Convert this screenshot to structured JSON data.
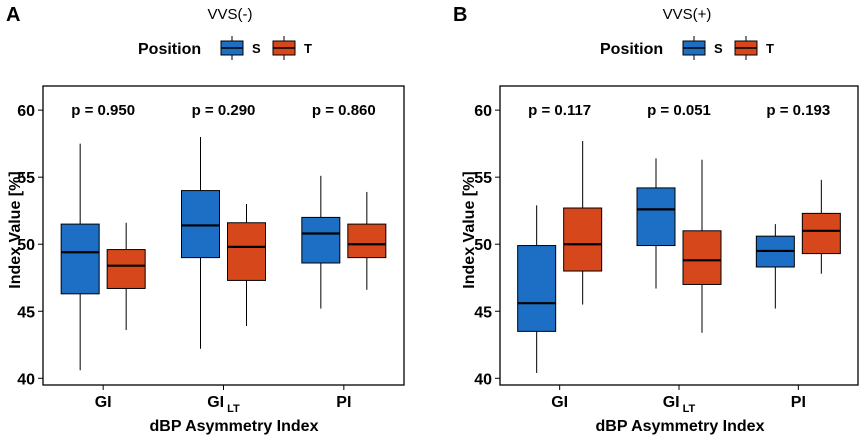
{
  "figure": {
    "legend_title": "Position",
    "legend_items": [
      {
        "label": "S",
        "color": "#1c6fc4"
      },
      {
        "label": "T",
        "color": "#d6481c"
      }
    ]
  },
  "chart_data": [
    {
      "type": "boxplot",
      "panel_letter": "A",
      "title": "VVS(-)",
      "xlabel": "dBP Asymmetry Index",
      "ylabel": "Index Value [%]",
      "ylim": [
        39.5,
        61.8
      ],
      "yticks": [
        40,
        45,
        50,
        55,
        60
      ],
      "categories": [
        {
          "main": "GI",
          "sub": ""
        },
        {
          "main": "GI",
          "sub": "LT"
        },
        {
          "main": "PI",
          "sub": ""
        }
      ],
      "p_values": [
        "p = 0.950",
        "p = 0.290",
        "p = 0.860"
      ],
      "series": [
        {
          "name": "S",
          "color": "#1c6fc4",
          "boxes": [
            {
              "min": 40.6,
              "q1": 46.3,
              "median": 49.4,
              "q3": 51.5,
              "max": 57.5
            },
            {
              "min": 42.2,
              "q1": 49.0,
              "median": 51.4,
              "q3": 54.0,
              "max": 58.0
            },
            {
              "min": 45.2,
              "q1": 48.6,
              "median": 50.8,
              "q3": 52.0,
              "max": 55.1
            }
          ]
        },
        {
          "name": "T",
          "color": "#d6481c",
          "boxes": [
            {
              "min": 43.6,
              "q1": 46.7,
              "median": 48.4,
              "q3": 49.6,
              "max": 51.6
            },
            {
              "min": 43.9,
              "q1": 47.3,
              "median": 49.8,
              "q3": 51.6,
              "max": 53.0
            },
            {
              "min": 46.6,
              "q1": 49.0,
              "median": 50.0,
              "q3": 51.5,
              "max": 53.9
            }
          ]
        }
      ]
    },
    {
      "type": "boxplot",
      "panel_letter": "B",
      "title": "VVS(+)",
      "xlabel": "dBP Asymmetry Index",
      "ylabel": "Index Value [%]",
      "ylim": [
        39.5,
        61.8
      ],
      "yticks": [
        40,
        45,
        50,
        55,
        60
      ],
      "categories": [
        {
          "main": "GI",
          "sub": ""
        },
        {
          "main": "GI",
          "sub": "LT"
        },
        {
          "main": "PI",
          "sub": ""
        }
      ],
      "p_values": [
        "p = 0.117",
        "p = 0.051",
        "p = 0.193"
      ],
      "series": [
        {
          "name": "S",
          "color": "#1c6fc4",
          "boxes": [
            {
              "min": 40.4,
              "q1": 43.5,
              "median": 45.6,
              "q3": 49.9,
              "max": 52.9
            },
            {
              "min": 46.7,
              "q1": 49.9,
              "median": 52.6,
              "q3": 54.2,
              "max": 56.4
            },
            {
              "min": 45.2,
              "q1": 48.3,
              "median": 49.5,
              "q3": 50.6,
              "max": 51.5
            }
          ]
        },
        {
          "name": "T",
          "color": "#d6481c",
          "boxes": [
            {
              "min": 45.5,
              "q1": 48.0,
              "median": 50.0,
              "q3": 52.7,
              "max": 57.7
            },
            {
              "min": 43.4,
              "q1": 47.0,
              "median": 48.8,
              "q3": 51.0,
              "max": 56.3
            },
            {
              "min": 47.8,
              "q1": 49.3,
              "median": 51.0,
              "q3": 52.3,
              "max": 54.8
            }
          ]
        }
      ]
    }
  ]
}
